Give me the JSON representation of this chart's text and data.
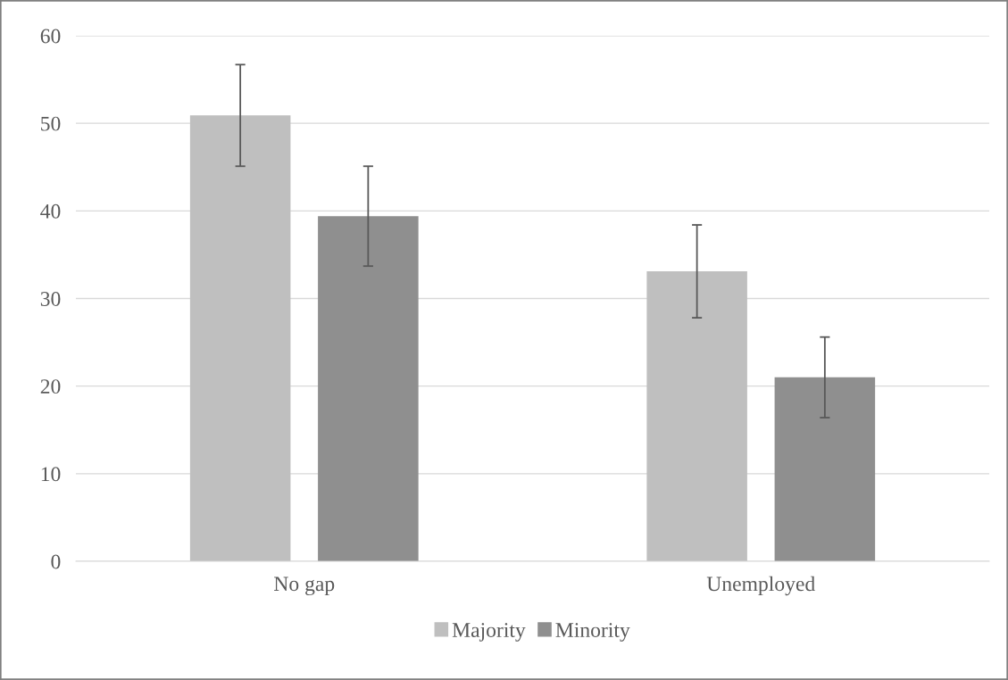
{
  "chart_data": {
    "type": "bar",
    "categories": [
      "No gap",
      "Unemployed"
    ],
    "series": [
      {
        "name": "Majority",
        "color": "#bfbfbf",
        "values": [
          50.9,
          33.1
        ],
        "errors": [
          5.8,
          5.3
        ]
      },
      {
        "name": "Minority",
        "color": "#8f8f8f",
        "values": [
          39.4,
          21.0
        ],
        "errors": [
          5.7,
          4.6
        ]
      }
    ],
    "ylim": [
      0,
      60
    ],
    "yticks": [
      0,
      10,
      20,
      30,
      40,
      50,
      60
    ],
    "grid": "y",
    "legend": "bottom"
  }
}
